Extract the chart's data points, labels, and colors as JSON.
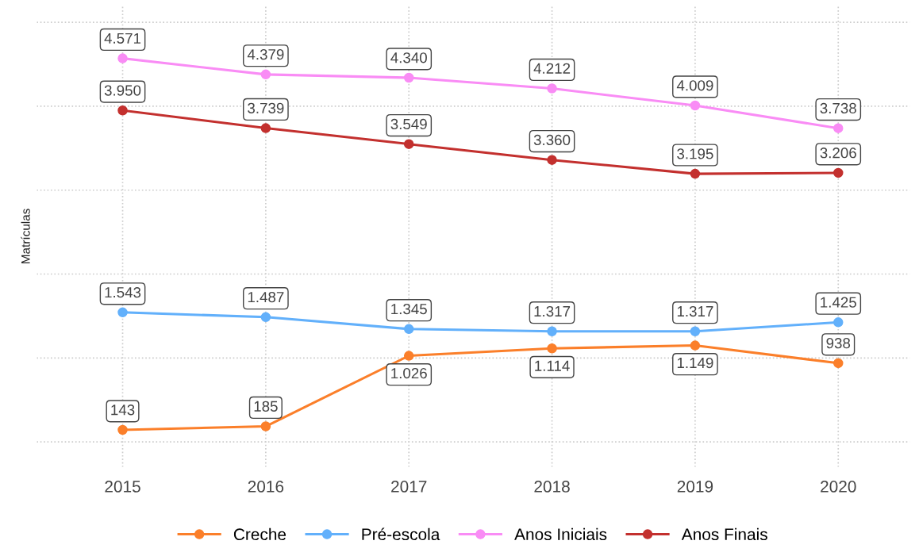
{
  "chart_data": {
    "type": "line",
    "ylabel": "Matrículas",
    "categories": [
      "2015",
      "2016",
      "2017",
      "2018",
      "2019",
      "2020"
    ],
    "series": [
      {
        "name": "Creche",
        "color": "#fb7f2a",
        "values": [
          143,
          185,
          1026,
          1114,
          1149,
          938
        ],
        "value_labels": [
          "143",
          "185",
          "1.026",
          "1.114",
          "1.149",
          "938"
        ]
      },
      {
        "name": "Pré-escola",
        "color": "#62b0fb",
        "values": [
          1543,
          1487,
          1345,
          1317,
          1317,
          1425
        ],
        "value_labels": [
          "1.543",
          "1.487",
          "1.345",
          "1.317",
          "1.317",
          "1.425"
        ]
      },
      {
        "name": "Anos Iniciais",
        "color": "#f98cf5",
        "values": [
          4571,
          4379,
          4340,
          4212,
          4009,
          3738
        ],
        "value_labels": [
          "4.571",
          "4.379",
          "4.340",
          "4.212",
          "4.009",
          "3.738"
        ]
      },
      {
        "name": "Anos Finais",
        "color": "#c3302e",
        "values": [
          3950,
          3739,
          3549,
          3360,
          3195,
          3206
        ],
        "value_labels": [
          "3.950",
          "3.739",
          "3.549",
          "3.360",
          "3.195",
          "3.206"
        ]
      }
    ],
    "ylim": [
      -300,
      5200
    ],
    "yticks": [
      {
        "value": 0,
        "label": null
      },
      {
        "value": 1000,
        "label": null
      },
      {
        "value": 2000,
        "label": null
      },
      {
        "value": 3000,
        "label": null
      },
      {
        "value": 4000,
        "label": null
      },
      {
        "value": 5000,
        "label": null
      }
    ],
    "tick_labels": "x",
    "grid": true,
    "legend": "bottom",
    "marker": "circle",
    "line_style": "solid"
  }
}
